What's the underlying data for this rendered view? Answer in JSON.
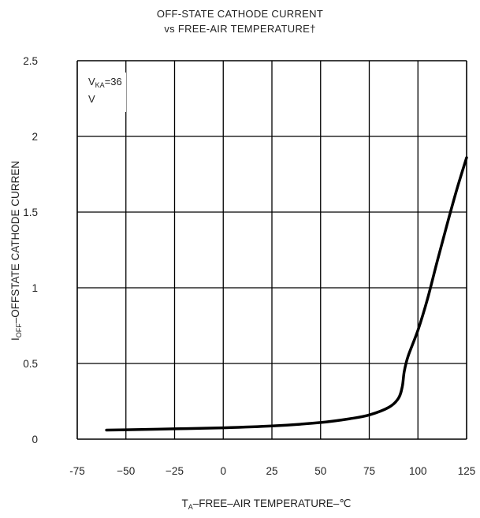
{
  "chart_data": {
    "type": "line",
    "title": "OFF-STATE CATHODE CURRENT",
    "subtitle": "vs FREE-AIR TEMPERATURE†",
    "xlabel": {
      "main": "T",
      "sub": "A",
      "rest": "–FREE–AIR TEMPERATURE–℃"
    },
    "ylabel": {
      "main": "I",
      "sub": "OFF",
      "rest": "–OFFSTATE CATHODE CURREN"
    },
    "xlim": [
      -75,
      125
    ],
    "ylim": [
      0,
      2.5
    ],
    "x_ticks": [
      "-75",
      "−50",
      "−25",
      "0",
      "25",
      "50",
      "75",
      "100",
      "125"
    ],
    "x_tick_values": [
      -75,
      -50,
      -25,
      0,
      25,
      50,
      75,
      100,
      125
    ],
    "y_ticks": [
      "0",
      "0.5",
      "1",
      "1.5",
      "2",
      "2.5"
    ],
    "y_tick_values": [
      0,
      0.5,
      1,
      1.5,
      2,
      2.5
    ],
    "grid": true,
    "annotation": {
      "line1_main": "V",
      "line1_sub": "KA",
      "line1_rest": "=36",
      "line2": "V"
    },
    "series": [
      {
        "x": [
          -60,
          -50,
          -25,
          0,
          25,
          50,
          65,
          75,
          85,
          90,
          92,
          93,
          95,
          100,
          105,
          110,
          115,
          120,
          125
        ],
        "y": [
          0.06,
          0.062,
          0.068,
          0.075,
          0.087,
          0.11,
          0.135,
          0.16,
          0.21,
          0.27,
          0.35,
          0.45,
          0.55,
          0.72,
          0.93,
          1.18,
          1.42,
          1.65,
          1.86
        ]
      }
    ]
  }
}
